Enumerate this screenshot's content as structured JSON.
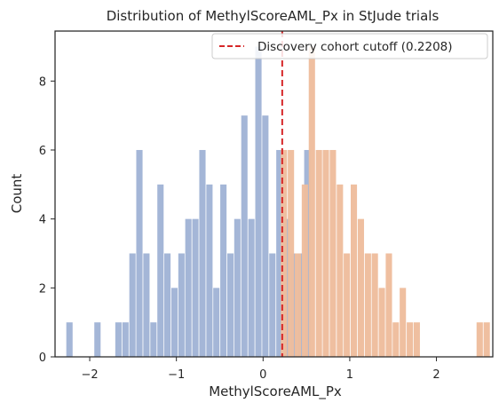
{
  "chart_data": {
    "type": "bar",
    "title": "Distribution of MethylScoreAML_Px in StJude trials",
    "xlabel": "MethylScoreAML_Px",
    "ylabel": "Count",
    "xlim": [
      -2.4,
      2.65
    ],
    "ylim": [
      0,
      9.45
    ],
    "x_ticks": [
      -2,
      -1,
      0,
      1,
      2
    ],
    "x_tick_labels": [
      "−2",
      "−1",
      "0",
      "1",
      "2"
    ],
    "y_ticks": [
      0,
      2,
      4,
      6,
      8
    ],
    "y_tick_labels": [
      "0",
      "2",
      "4",
      "6",
      "8"
    ],
    "grid": false,
    "bin_width": 0.0807,
    "series": [
      {
        "color": "#a1b4d6",
        "bins": [
          {
            "x": -2.27,
            "count": 1
          },
          {
            "x": -1.947,
            "count": 1
          },
          {
            "x": -1.705,
            "count": 1
          },
          {
            "x": -1.624,
            "count": 1
          },
          {
            "x": -1.543,
            "count": 3
          },
          {
            "x": -1.463,
            "count": 6
          },
          {
            "x": -1.382,
            "count": 3
          },
          {
            "x": -1.301,
            "count": 1
          },
          {
            "x": -1.22,
            "count": 5
          },
          {
            "x": -1.14,
            "count": 3
          },
          {
            "x": -1.059,
            "count": 2
          },
          {
            "x": -0.978,
            "count": 3
          },
          {
            "x": -0.898,
            "count": 4
          },
          {
            "x": -0.817,
            "count": 4
          },
          {
            "x": -0.736,
            "count": 6
          },
          {
            "x": -0.655,
            "count": 5
          },
          {
            "x": -0.575,
            "count": 2
          },
          {
            "x": -0.494,
            "count": 5
          },
          {
            "x": -0.413,
            "count": 3
          },
          {
            "x": -0.333,
            "count": 4
          },
          {
            "x": -0.252,
            "count": 7
          },
          {
            "x": -0.171,
            "count": 4
          },
          {
            "x": -0.09,
            "count": 9
          },
          {
            "x": -0.01,
            "count": 7
          },
          {
            "x": 0.071,
            "count": 3
          },
          {
            "x": 0.152,
            "count": 6
          },
          {
            "x": 0.232,
            "count": 4
          },
          {
            "x": 0.313,
            "count": 3
          },
          {
            "x": 0.394,
            "count": 3
          },
          {
            "x": 0.474,
            "count": 6
          }
        ]
      },
      {
        "color": "#eebd9d",
        "bins": [
          {
            "x": 0.204,
            "count": 6
          },
          {
            "x": 0.285,
            "count": 6
          },
          {
            "x": 0.365,
            "count": 3
          },
          {
            "x": 0.446,
            "count": 5
          },
          {
            "x": 0.527,
            "count": 9
          },
          {
            "x": 0.608,
            "count": 6
          },
          {
            "x": 0.688,
            "count": 6
          },
          {
            "x": 0.769,
            "count": 6
          },
          {
            "x": 0.85,
            "count": 5
          },
          {
            "x": 0.93,
            "count": 3
          },
          {
            "x": 1.011,
            "count": 5
          },
          {
            "x": 1.092,
            "count": 4
          },
          {
            "x": 1.173,
            "count": 3
          },
          {
            "x": 1.253,
            "count": 3
          },
          {
            "x": 1.334,
            "count": 2
          },
          {
            "x": 1.415,
            "count": 3
          },
          {
            "x": 1.495,
            "count": 1
          },
          {
            "x": 1.576,
            "count": 2
          },
          {
            "x": 1.657,
            "count": 1
          },
          {
            "x": 1.737,
            "count": 1
          },
          {
            "x": 2.463,
            "count": 1
          },
          {
            "x": 2.544,
            "count": 1
          }
        ]
      }
    ],
    "reference_line": {
      "x": 0.2208,
      "color": "#d62728",
      "style": "dashed",
      "label": "Discovery cohort cutoff (0.2208)"
    },
    "legend_position": "top-right"
  }
}
